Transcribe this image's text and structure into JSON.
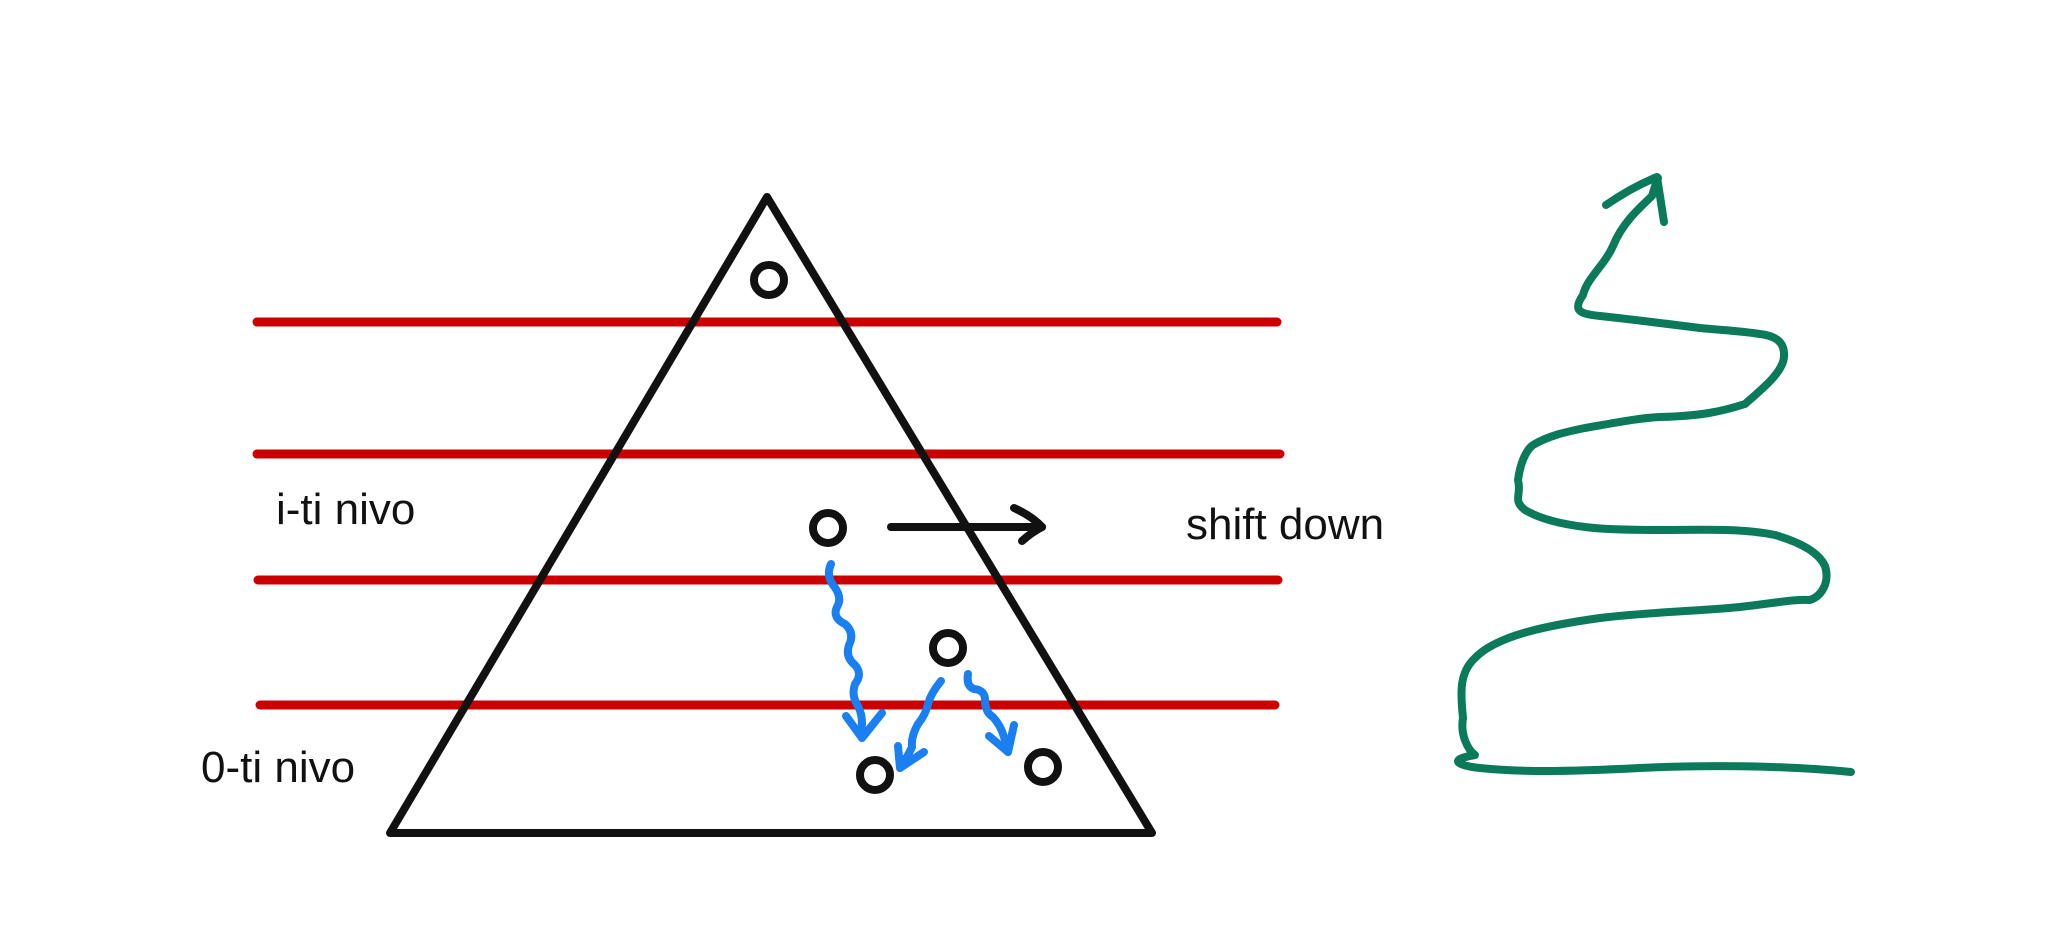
{
  "labels": {
    "i_level": "i-ti nivo",
    "zero_level": "0-ti nivo",
    "shift": "shift down"
  },
  "colors": {
    "outline": "#111111",
    "level_lines": "#cc0000",
    "sift_arrows": "#1a7ff0",
    "spiral": "#0b7a5a",
    "background": "#ffffff"
  },
  "icons": [
    "heap-node",
    "right-arrow-icon",
    "down-arrow-icon",
    "curly-up-arrow-icon"
  ]
}
